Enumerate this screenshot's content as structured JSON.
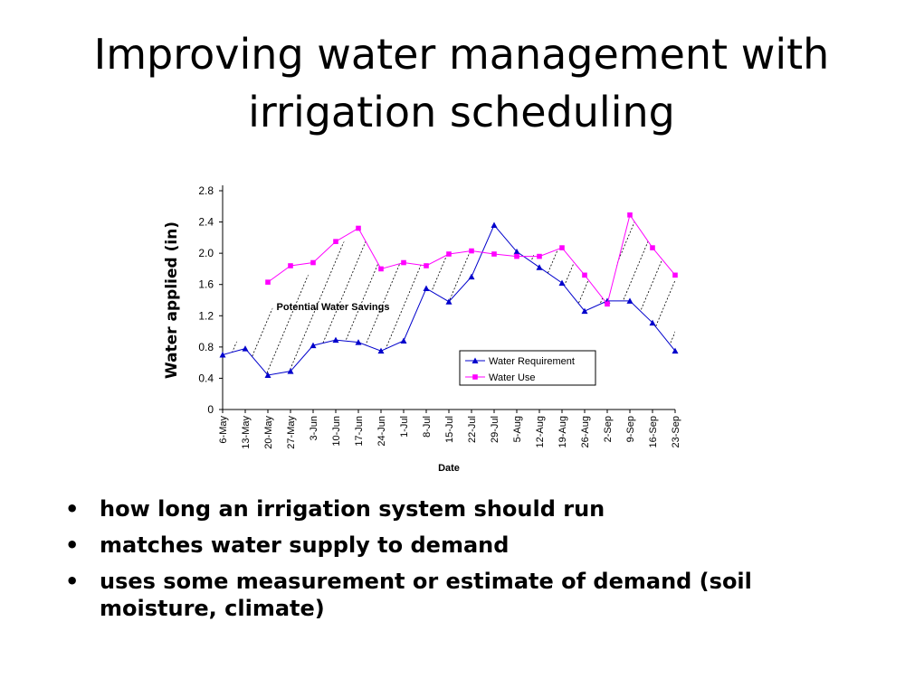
{
  "slide": {
    "title_line1": "Improving water management with",
    "title_line2": "irrigation scheduling",
    "bullets": [
      " how long an irrigation system should run",
      " matches water supply to demand",
      " uses some measurement or estimate of demand (soil moisture, climate)"
    ],
    "bullet_glyph": "•"
  },
  "chart_data": {
    "type": "line",
    "title": "",
    "xlabel": "Date",
    "ylabel": "Water applied (in)",
    "ylim": [
      0,
      2.8
    ],
    "yticks": [
      "0",
      "0.4",
      "0.8",
      "1.2",
      "1.6",
      "2.0",
      "2.4",
      "2.8"
    ],
    "ytick_values": [
      0,
      0.4,
      0.8,
      1.2,
      1.6,
      2.0,
      2.4,
      2.8
    ],
    "categories": [
      "6-May",
      "13-May",
      "20-May",
      "27-May",
      "3-Jun",
      "10-Jun",
      "17-Jun",
      "24-Jun",
      "1-Jul",
      "8-Jul",
      "15-Jul",
      "22-Jul",
      "29-Jul",
      "5-Aug",
      "12-Aug",
      "19-Aug",
      "26-Aug",
      "2-Sep",
      "9-Sep",
      "16-Sep",
      "23-Sep"
    ],
    "series": [
      {
        "name": "Water Requirement",
        "color": "#0000cc",
        "marker": "triangle",
        "values": [
          0.7,
          0.78,
          0.44,
          0.49,
          0.82,
          0.89,
          0.86,
          0.75,
          0.88,
          1.55,
          1.38,
          1.7,
          2.36,
          2.02,
          1.82,
          1.62,
          1.26,
          1.39,
          1.39,
          1.11,
          0.75
        ]
      },
      {
        "name": "Water Use",
        "color": "#ff00ff",
        "marker": "square",
        "values": [
          null,
          null,
          1.63,
          1.84,
          1.88,
          2.15,
          2.32,
          1.8,
          1.88,
          1.84,
          1.99,
          2.03,
          1.99,
          1.96,
          1.96,
          2.07,
          1.72,
          1.35,
          2.49,
          2.07,
          1.72
        ]
      }
    ],
    "annotation": "Potential Water Savings",
    "legend_position": "lower-right",
    "grid": false
  }
}
